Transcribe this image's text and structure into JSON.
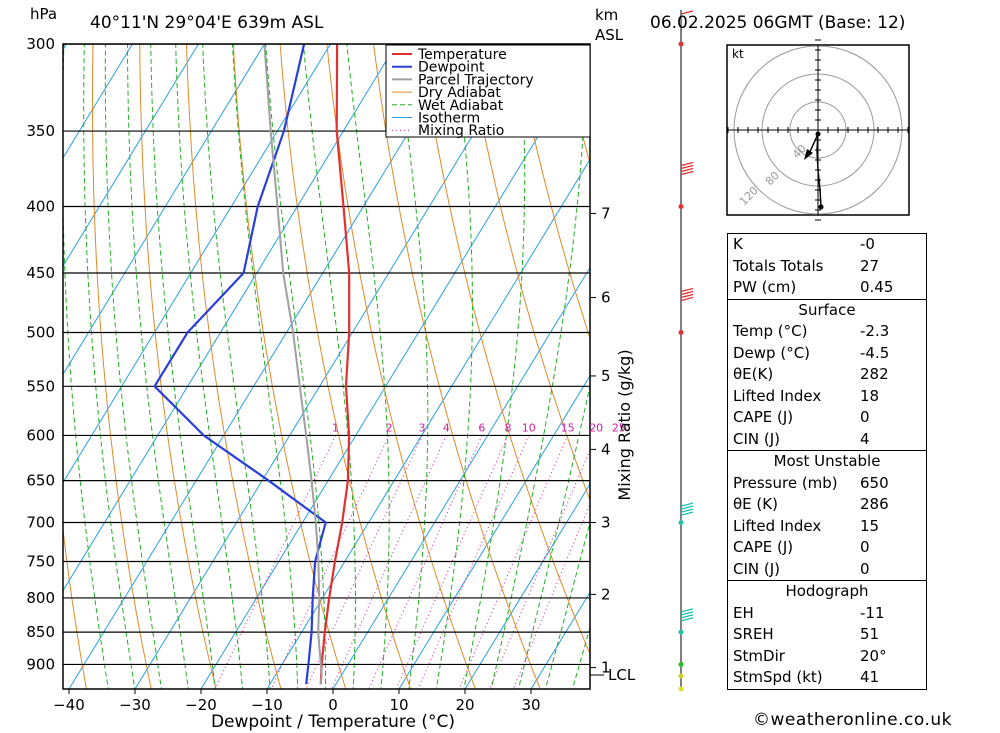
{
  "header": {
    "units_left": "hPa",
    "location": "40°11'N  29°04'E  639m  ASL",
    "km_label": "km",
    "asl_label": "ASL",
    "datetime": "06.02.2025  06GMT  (Base: 12)"
  },
  "chart_data": {
    "type": "line",
    "xlabel": "Dewpoint / Temperature (°C)",
    "ylabel_right": "Mixing Ratio (g/kg)",
    "x_range": [
      -40,
      40
    ],
    "y_range_hpa": [
      300,
      940
    ],
    "x_ticks": [
      -40,
      -30,
      -20,
      -10,
      0,
      10,
      20,
      30
    ],
    "pressure_levels": [
      300,
      350,
      400,
      450,
      500,
      550,
      600,
      650,
      700,
      750,
      800,
      850,
      900
    ],
    "height_km_ticks": [
      {
        "label": "7",
        "p": 405
      },
      {
        "label": "6",
        "p": 470
      },
      {
        "label": "5",
        "p": 540
      },
      {
        "label": "4",
        "p": 615
      },
      {
        "label": "3",
        "p": 700
      },
      {
        "label": "2",
        "p": 795
      },
      {
        "label": "1",
        "p": 905
      }
    ],
    "lcl_label": "LCL",
    "lcl_p": 917,
    "mixing_ratio_labels": [
      "1",
      "2",
      "3",
      "4",
      "6",
      "8",
      "10",
      "15",
      "20",
      "25"
    ],
    "mixing_ratio_values": [
      1,
      2,
      3,
      4,
      6,
      8,
      10,
      15,
      20,
      25
    ],
    "legend": [
      "Temperature",
      "Dewpoint",
      "Parcel Trajectory",
      "Dry Adiabat",
      "Wet Adiabat",
      "Isotherm",
      "Mixing Ratio"
    ],
    "series": [
      {
        "name": "Temperature",
        "color": "#e03030",
        "points": [
          [
            932,
            -2.3
          ],
          [
            900,
            -4
          ],
          [
            850,
            -6.5
          ],
          [
            800,
            -9
          ],
          [
            750,
            -11.5
          ],
          [
            700,
            -14
          ],
          [
            650,
            -17
          ],
          [
            600,
            -21
          ],
          [
            550,
            -26
          ],
          [
            500,
            -30.5
          ],
          [
            450,
            -36
          ],
          [
            400,
            -43
          ],
          [
            350,
            -51
          ],
          [
            300,
            -59
          ]
        ]
      },
      {
        "name": "Dewpoint",
        "color": "#2a3fd8",
        "points": [
          [
            932,
            -4.5
          ],
          [
            900,
            -6
          ],
          [
            850,
            -8.5
          ],
          [
            800,
            -11.5
          ],
          [
            750,
            -14.5
          ],
          [
            700,
            -16.5
          ],
          [
            650,
            -29
          ],
          [
            600,
            -43
          ],
          [
            550,
            -55
          ],
          [
            500,
            -55
          ],
          [
            450,
            -52
          ],
          [
            400,
            -56
          ],
          [
            350,
            -59
          ],
          [
            300,
            -64
          ]
        ]
      },
      {
        "name": "Parcel Trajectory",
        "color": "#a0a0a0",
        "points": [
          [
            932,
            -2.3
          ],
          [
            917,
            -3
          ],
          [
            850,
            -7.5
          ],
          [
            800,
            -10.5
          ],
          [
            750,
            -14
          ],
          [
            700,
            -18
          ],
          [
            650,
            -22.5
          ],
          [
            600,
            -27.5
          ],
          [
            550,
            -33
          ],
          [
            500,
            -39
          ],
          [
            450,
            -46
          ],
          [
            400,
            -53
          ],
          [
            350,
            -61
          ],
          [
            300,
            -70
          ]
        ]
      }
    ]
  },
  "hodograph": {
    "unit": "kt",
    "ring_labels": [
      "40",
      "80",
      "120"
    ]
  },
  "indices": {
    "rows": [
      {
        "label": "K",
        "value": "-0"
      },
      {
        "label": "Totals Totals",
        "value": "27"
      },
      {
        "label": "PW (cm)",
        "value": "0.45"
      }
    ]
  },
  "surface": {
    "title": "Surface",
    "rows": [
      {
        "label": "Temp (°C)",
        "value": "-2.3"
      },
      {
        "label": "Dewp (°C)",
        "value": "-4.5"
      },
      {
        "label": "θE(K)",
        "value": "282"
      },
      {
        "label": "Lifted Index",
        "value": "18"
      },
      {
        "label": "CAPE (J)",
        "value": "0"
      },
      {
        "label": "CIN (J)",
        "value": "4"
      }
    ]
  },
  "most_unstable": {
    "title": "Most Unstable",
    "rows": [
      {
        "label": "Pressure (mb)",
        "value": "650"
      },
      {
        "label": "θE (K)",
        "value": "286"
      },
      {
        "label": "Lifted Index",
        "value": "15"
      },
      {
        "label": "CAPE (J)",
        "value": "0"
      },
      {
        "label": "CIN (J)",
        "value": "0"
      }
    ]
  },
  "hodo_table": {
    "title": "Hodograph",
    "rows": [
      {
        "label": "EH",
        "value": "-11"
      },
      {
        "label": "SREH",
        "value": "51"
      },
      {
        "label": "StmDir",
        "value": "20°"
      },
      {
        "label": "StmSpd (kt)",
        "value": "41"
      }
    ]
  },
  "footer": "©weatheronline.co.uk",
  "colors": {
    "temperature": "#e03030",
    "dewpoint": "#2a3fd8",
    "parcel": "#a0a0a0",
    "dry_adiabat": "#e08a2a",
    "wet_adiabat": "#22b022",
    "isotherm": "#2aa0e0",
    "mixing_ratio": "#d020a0"
  }
}
